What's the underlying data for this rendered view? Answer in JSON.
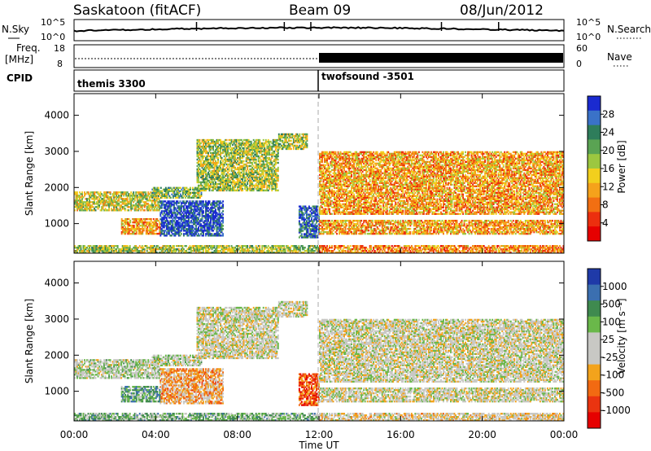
{
  "header": {
    "station": "Saskatoon (fitACF)",
    "beam": "Beam 09",
    "date": "08/Jun/2012"
  },
  "aux": {
    "nsky_label": "N.Sky",
    "nsearch_label": "N.Search",
    "noise_ticks": [
      "10^5",
      "10^0"
    ],
    "freq_label_top": "Freq.",
    "freq_label_bottom": "[MHz]",
    "freq_ticks": [
      "18",
      "8"
    ],
    "nave_label": "Nave",
    "nave_ticks": [
      "60",
      "0"
    ],
    "cpid_label": "CPID",
    "programs": [
      "themis 3300",
      "twofsound -3501"
    ]
  },
  "chart_data": {
    "type": "heatmap",
    "x_label": "Time UT",
    "x_ticks": [
      "00:00",
      "04:00",
      "08:00",
      "12:00",
      "16:00",
      "20:00",
      "00:00"
    ],
    "xlim_hours": [
      0,
      24
    ],
    "y_label": "Slant Range [km]",
    "y_ticks": [
      1000,
      2000,
      3000,
      4000
    ],
    "ylim_km": [
      180,
      4600
    ],
    "grid": false,
    "power_panel": {
      "colorbar_label": "Power [dB]",
      "colorbar_ticks": [
        "28",
        "24",
        "20",
        "16",
        "12",
        "8",
        "4"
      ],
      "scale": [
        "#1a2ad0",
        "#3a72c8",
        "#2e7d5b",
        "#5aa353",
        "#9cc740",
        "#f2cf1d",
        "#f5a21b",
        "#f26f12",
        "#ec2f0e",
        "#e60000"
      ]
    },
    "velocity_panel": {
      "colorbar_label": "Velocity [m s⁻¹]",
      "colorbar_ticks": [
        "1000",
        "500",
        "100",
        "25",
        "-25",
        "-100",
        "-500",
        "-1000"
      ],
      "scale": [
        "#1f3aa8",
        "#3b6fb0",
        "#3f8a4f",
        "#6ab84a",
        "#c8c8c4",
        "#c8c8c4",
        "#f3a31c",
        "#f26a12",
        "#ea3410",
        "#e60000"
      ]
    },
    "program_change_hour": 12,
    "echo_bands": [
      {
        "t": [
          0.0,
          4.2
        ],
        "range": [
          1350,
          1850
        ],
        "level": 0.5,
        "vel": 0.45
      },
      {
        "t": [
          3.8,
          6.2
        ],
        "range": [
          1700,
          2000
        ],
        "level": 0.6,
        "vel": 0.45
      },
      {
        "t": [
          6.0,
          10.0
        ],
        "range": [
          1900,
          3300
        ],
        "level": 0.55,
        "vel": 0.5
      },
      {
        "t": [
          10.0,
          11.4
        ],
        "range": [
          3050,
          3500
        ],
        "level": 0.55,
        "vel": 0.5
      },
      {
        "t": [
          4.2,
          7.3
        ],
        "range": [
          650,
          1600
        ],
        "level": 0.9,
        "vel": 0.65
      },
      {
        "t": [
          2.3,
          4.2
        ],
        "range": [
          700,
          1150
        ],
        "level": 0.35,
        "vel": 0.3
      },
      {
        "t": [
          11.0,
          12.0
        ],
        "range": [
          600,
          1500
        ],
        "level": 0.85,
        "vel": 0.8
      },
      {
        "t": [
          12.0,
          24.0
        ],
        "range": [
          1250,
          3000
        ],
        "level": 0.35,
        "vel": 0.5
      },
      {
        "t": [
          12.0,
          24.0
        ],
        "range": [
          700,
          1100
        ],
        "level": 0.35,
        "vel": 0.5
      },
      {
        "t": [
          0.0,
          12.0
        ],
        "range": [
          180,
          400
        ],
        "level": 0.55,
        "vel": 0.35
      },
      {
        "t": [
          12.0,
          24.0
        ],
        "range": [
          180,
          400
        ],
        "level": 0.3,
        "vel": 0.55
      }
    ]
  }
}
